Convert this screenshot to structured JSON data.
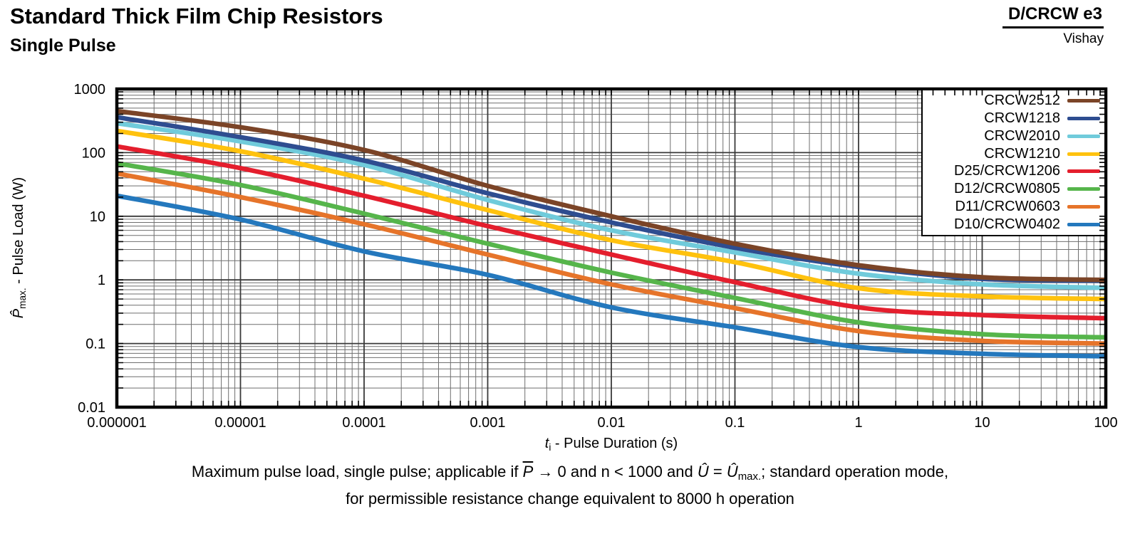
{
  "header": {
    "title": "Standard Thick Film Chip Resistors",
    "subtitle": "Single Pulse",
    "doc_code": "D/CRCW e3",
    "brand": "Vishay"
  },
  "chart_data": {
    "type": "line",
    "log_x": true,
    "log_y": true,
    "xlim": [
      1e-06,
      100
    ],
    "ylim": [
      0.01,
      1000
    ],
    "grid": "log major and minor, full frame",
    "legend_position": "top-right-inside",
    "x_ticks": [
      "0.000001",
      "0.00001",
      "0.0001",
      "0.001",
      "0.01",
      "0.1",
      "1",
      "10",
      "100"
    ],
    "y_ticks": [
      "1000",
      "100",
      "10",
      "1",
      "0.1",
      "0.01"
    ],
    "xlabel_parts": [
      {
        "t": "t",
        "s": "i"
      },
      {
        "t": "i",
        "s": "sub"
      },
      {
        "t": " - Pulse Duration (s)"
      }
    ],
    "ylabel_parts": [
      {
        "t": "P̂",
        "s": "i"
      },
      {
        "t": "max.",
        "s": "sub"
      },
      {
        "t": " - Pulse Load (W)"
      }
    ],
    "x": [
      1e-06,
      1e-05,
      0.0001,
      0.001,
      0.01,
      0.1,
      1,
      10,
      100
    ],
    "series": [
      {
        "name": "CRCW2512",
        "color": "#7B4427",
        "values": [
          450,
          250,
          110,
          30,
          10,
          3.7,
          1.7,
          1.1,
          1.0
        ]
      },
      {
        "name": "CRCW1218",
        "color": "#2E4D90",
        "values": [
          360,
          175,
          75,
          23,
          8,
          3.2,
          1.6,
          1.04,
          0.97
        ]
      },
      {
        "name": "CRCW2010",
        "color": "#70CBDB",
        "values": [
          290,
          150,
          64,
          18,
          6.0,
          2.7,
          1.25,
          0.85,
          0.75
        ]
      },
      {
        "name": "CRCW1210",
        "color": "#FFC20E",
        "values": [
          220,
          105,
          39,
          12.5,
          4.2,
          1.9,
          0.74,
          0.55,
          0.5
        ]
      },
      {
        "name": "D25/CRCW1206",
        "color": "#E41E2D",
        "values": [
          125,
          57,
          21,
          7,
          2.5,
          0.92,
          0.37,
          0.28,
          0.25
        ]
      },
      {
        "name": "D12/CRCW0805",
        "color": "#56B54B",
        "values": [
          68,
          31,
          11,
          3.7,
          1.3,
          0.52,
          0.215,
          0.14,
          0.125
        ]
      },
      {
        "name": "D11/CRCW0603",
        "color": "#E6742A",
        "values": [
          47,
          20,
          7.5,
          2.5,
          0.85,
          0.36,
          0.157,
          0.11,
          0.1
        ]
      },
      {
        "name": "D10/CRCW0402",
        "color": "#2478BD",
        "values": [
          21,
          8.9,
          2.8,
          1.2,
          0.37,
          0.18,
          0.088,
          0.069,
          0.063
        ]
      }
    ]
  },
  "caption": {
    "line1_parts": [
      {
        "t": "Maximum pulse load, single pulse; applicable if "
      },
      {
        "t": "P",
        "s": "iov"
      },
      {
        "t": " → 0 and n < 1000 and "
      },
      {
        "t": "Û",
        "s": "i"
      },
      {
        "t": " = "
      },
      {
        "t": "Û",
        "s": "i"
      },
      {
        "t": "max.",
        "s": "sub"
      },
      {
        "t": "; standard operation mode,"
      }
    ],
    "line2_parts": [
      {
        "t": "for permissible resistance change equivalent to 8000 h operation"
      }
    ]
  }
}
